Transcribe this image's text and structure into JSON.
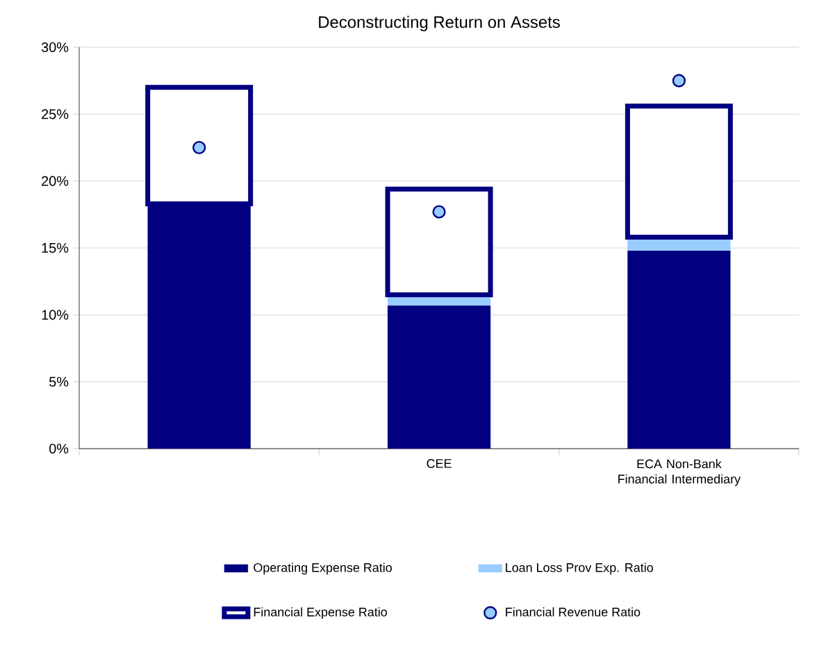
{
  "chart_data": {
    "type": "bar",
    "title": "Deconstructing Return on Assets",
    "stacked": true,
    "categories": [
      null,
      "CEE",
      "ECA Non-Bank Financial Intermediary"
    ],
    "series": [
      {
        "name": "Operating Expense Ratio",
        "color": "#000080",
        "values": [
          18.3,
          10.7,
          14.8
        ]
      },
      {
        "name": "Loan Loss Prov Exp. Ratio",
        "color": "#99ccff",
        "values": [
          0,
          0.8,
          1.0
        ]
      },
      {
        "name": "Financial Expense Ratio",
        "color": "#000080",
        "values": [
          8.7,
          7.9,
          9.8
        ]
      },
      {
        "name": "Financial Revenue Ratio",
        "type": "scatter",
        "color": "#99ccff",
        "values": [
          22.5,
          17.7,
          27.5
        ]
      }
    ],
    "ylim": [
      0,
      30
    ],
    "yticks": [
      {
        "value": 0,
        "label": "0%"
      },
      {
        "value": 5,
        "label": "5%"
      },
      {
        "value": 10,
        "label": "10%"
      },
      {
        "value": 15,
        "label": "15%"
      },
      {
        "value": 20,
        "label": "20%"
      },
      {
        "value": 25,
        "label": "25%"
      },
      {
        "value": 30,
        "label": "30%"
      }
    ],
    "grid": "y",
    "legend": "bottom"
  }
}
